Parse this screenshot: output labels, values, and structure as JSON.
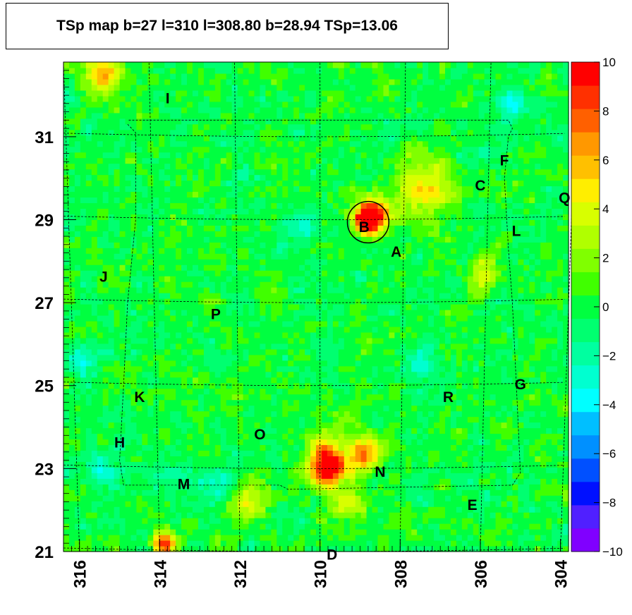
{
  "chart_data": {
    "type": "heatmap",
    "title": "TSp map b=27 l=310 l=308.80 b=28.94 TSp=13.06",
    "xlabel": "",
    "ylabel": "",
    "x_axis_reversed": true,
    "xlim": [
      316.4,
      303.8
    ],
    "ylim": [
      21,
      32.8
    ],
    "x_ticks": [
      "316",
      "314",
      "312",
      "310",
      "308",
      "306",
      "304"
    ],
    "y_ticks": [
      "21",
      "23",
      "25",
      "27",
      "29",
      "31"
    ],
    "colorbar": {
      "min": -10,
      "max": 10,
      "ticks": [
        "10",
        "8",
        "6",
        "4",
        "2",
        "0",
        "−2",
        "−4",
        "−6",
        "−8",
        "−10"
      ],
      "palette": [
        "#8000ff",
        "#5020ff",
        "#0010ff",
        "#0050ff",
        "#0090ff",
        "#00bfff",
        "#00ffff",
        "#00ffd0",
        "#00ffa0",
        "#00ff70",
        "#00ff40",
        "#40ff00",
        "#80ff00",
        "#b0ff00",
        "#d8ff00",
        "#ffee00",
        "#ffc000",
        "#ff9800",
        "#ff6000",
        "#ff3000",
        "#ff0000"
      ]
    },
    "background_value": 0,
    "hotspots": [
      {
        "l": 308.8,
        "b": 29.0,
        "value": 10,
        "sigma": 0.25
      },
      {
        "l": 308.6,
        "b": 29.2,
        "value": 6,
        "sigma": 0.3
      },
      {
        "l": 309.8,
        "b": 23.0,
        "value": 10,
        "sigma": 0.3
      },
      {
        "l": 309.9,
        "b": 23.5,
        "value": 5,
        "sigma": 0.3
      },
      {
        "l": 308.9,
        "b": 23.4,
        "value": 7,
        "sigma": 0.3
      },
      {
        "l": 307.3,
        "b": 29.8,
        "value": 5,
        "sigma": 0.5
      },
      {
        "l": 315.4,
        "b": 32.5,
        "value": 6,
        "sigma": 0.3
      },
      {
        "l": 313.9,
        "b": 21.2,
        "value": 9,
        "sigma": 0.2
      },
      {
        "l": 311.8,
        "b": 22.2,
        "value": 4,
        "sigma": 0.3
      },
      {
        "l": 309.3,
        "b": 22.2,
        "value": 4,
        "sigma": 0.3
      },
      {
        "l": 305.9,
        "b": 27.6,
        "value": 4,
        "sigma": 0.3
      }
    ],
    "coldspots": [
      {
        "l": 310.5,
        "b": 28.9,
        "value": -3,
        "sigma": 0.3
      },
      {
        "l": 315.9,
        "b": 25.6,
        "value": -3,
        "sigma": 0.3
      },
      {
        "l": 315.5,
        "b": 23.0,
        "value": -3,
        "sigma": 0.3
      },
      {
        "l": 312.6,
        "b": 22.7,
        "value": -3,
        "sigma": 0.3
      },
      {
        "l": 307.5,
        "b": 25.6,
        "value": -3,
        "sigma": 0.3
      },
      {
        "l": 305.2,
        "b": 31.8,
        "value": -3,
        "sigma": 0.3
      },
      {
        "l": 313.8,
        "b": 22.7,
        "value": -2,
        "sigma": 0.3
      }
    ],
    "circle": {
      "l": 308.8,
      "b": 28.94,
      "radius_deg": 0.5
    },
    "source_labels": [
      {
        "name": "A",
        "l": 308.1,
        "b": 28.2
      },
      {
        "name": "B",
        "l": 308.9,
        "b": 28.8
      },
      {
        "name": "C",
        "l": 306.0,
        "b": 29.8
      },
      {
        "name": "D",
        "l": 309.7,
        "b": 20.9
      },
      {
        "name": "E",
        "l": 306.2,
        "b": 22.1
      },
      {
        "name": "F",
        "l": 305.4,
        "b": 30.4
      },
      {
        "name": "G",
        "l": 305.0,
        "b": 25.0
      },
      {
        "name": "H",
        "l": 315.0,
        "b": 23.6
      },
      {
        "name": "I",
        "l": 313.8,
        "b": 31.9
      },
      {
        "name": "J",
        "l": 315.4,
        "b": 27.6
      },
      {
        "name": "K",
        "l": 314.5,
        "b": 24.7
      },
      {
        "name": "L",
        "l": 305.1,
        "b": 28.7
      },
      {
        "name": "M",
        "l": 313.4,
        "b": 22.6
      },
      {
        "name": "N",
        "l": 308.5,
        "b": 22.9
      },
      {
        "name": "O",
        "l": 311.5,
        "b": 23.8
      },
      {
        "name": "P",
        "l": 312.6,
        "b": 26.7
      },
      {
        "name": "Q",
        "l": 303.9,
        "b": 29.5
      },
      {
        "name": "R",
        "l": 306.8,
        "b": 24.7
      }
    ],
    "grid": true
  }
}
